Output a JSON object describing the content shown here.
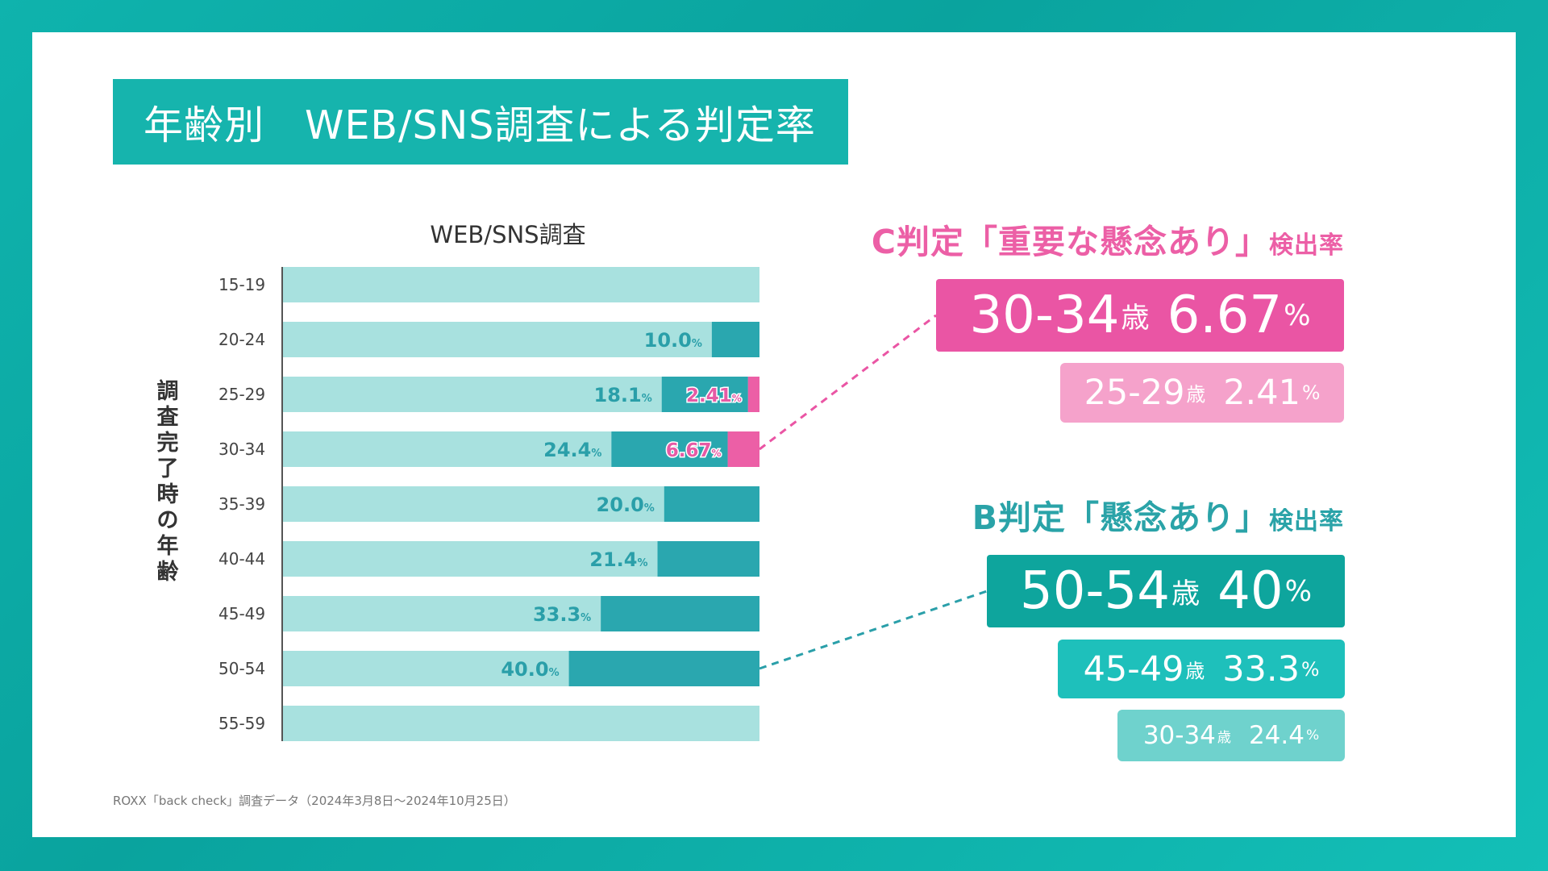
{
  "title": "年齢別　WEB/SNS調査による判定率",
  "chart_data": {
    "type": "bar",
    "orientation": "horizontal-stacked",
    "title": "WEB/SNS調査",
    "ylabel": "調査完了時の年齢",
    "categories": [
      "15-19",
      "20-24",
      "25-29",
      "30-34",
      "35-39",
      "40-44",
      "45-49",
      "50-54",
      "55-59"
    ],
    "series": [
      {
        "name": "B判定「懸念あり」",
        "values": [
          0,
          10.0,
          18.1,
          24.4,
          20.0,
          21.4,
          33.3,
          40.0,
          0
        ],
        "color": "#2aa7af"
      },
      {
        "name": "C判定「重要な懸念あり」",
        "values": [
          0,
          0,
          2.41,
          6.67,
          0,
          0,
          0,
          0,
          0
        ],
        "color": "#ec5fa6"
      }
    ],
    "b_labels": [
      "",
      "10.0",
      "18.1",
      "24.4",
      "20.0",
      "21.4",
      "33.3",
      "40.0",
      ""
    ],
    "c_labels": [
      "",
      "",
      "2.41",
      "6.67",
      "",
      "",
      "",
      "",
      ""
    ],
    "label_unit": "%",
    "xlim": [
      0,
      100
    ],
    "base_color": "#a8e1df"
  },
  "c_section": {
    "heading": "C判定「重要な懸念あり」",
    "heading_suffix": "検出率",
    "top": {
      "age": "30-34",
      "age_unit": "歳",
      "rate": "6.67",
      "rate_unit": "%"
    },
    "second": {
      "age": "25-29",
      "age_unit": "歳",
      "rate": "2.41",
      "rate_unit": "%"
    }
  },
  "b_section": {
    "heading": "B判定「懸念あり」",
    "heading_suffix": "検出率",
    "top": {
      "age": "50-54",
      "age_unit": "歳",
      "rate": "40",
      "rate_unit": "%"
    },
    "second": {
      "age": "45-49",
      "age_unit": "歳",
      "rate": "33.3",
      "rate_unit": "%"
    },
    "third": {
      "age": "30-34",
      "age_unit": "歳",
      "rate": "24.4",
      "rate_unit": "%"
    }
  },
  "source": "ROXX「back check」調査データ（2024年3月8日〜2024年10月25日）"
}
